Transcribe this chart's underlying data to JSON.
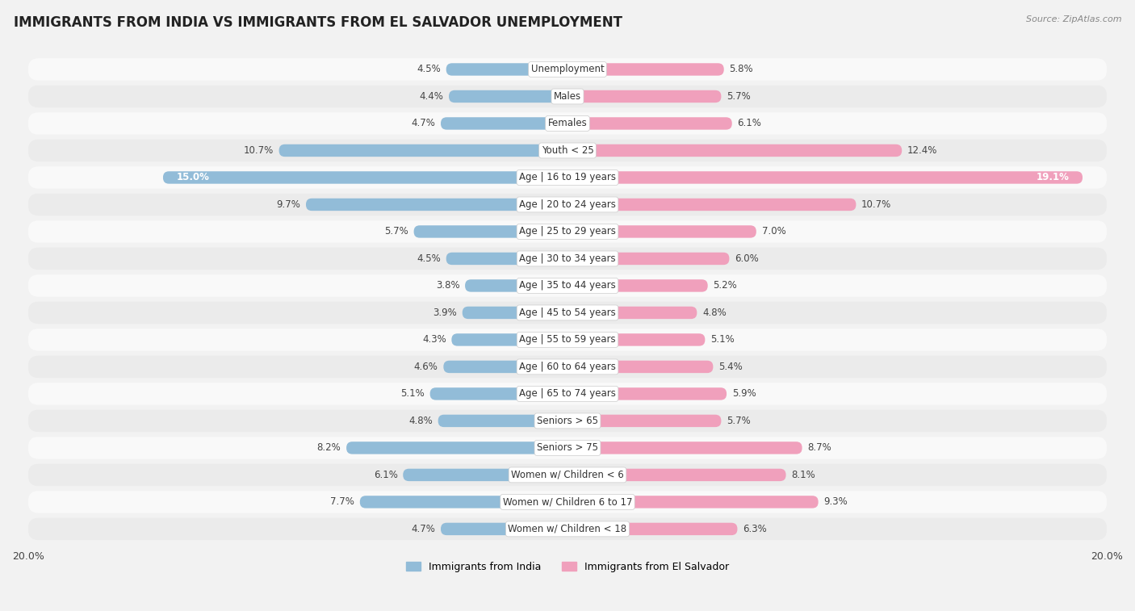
{
  "title": "IMMIGRANTS FROM INDIA VS IMMIGRANTS FROM EL SALVADOR UNEMPLOYMENT",
  "source": "Source: ZipAtlas.com",
  "categories": [
    "Unemployment",
    "Males",
    "Females",
    "Youth < 25",
    "Age | 16 to 19 years",
    "Age | 20 to 24 years",
    "Age | 25 to 29 years",
    "Age | 30 to 34 years",
    "Age | 35 to 44 years",
    "Age | 45 to 54 years",
    "Age | 55 to 59 years",
    "Age | 60 to 64 years",
    "Age | 65 to 74 years",
    "Seniors > 65",
    "Seniors > 75",
    "Women w/ Children < 6",
    "Women w/ Children 6 to 17",
    "Women w/ Children < 18"
  ],
  "india_values": [
    4.5,
    4.4,
    4.7,
    10.7,
    15.0,
    9.7,
    5.7,
    4.5,
    3.8,
    3.9,
    4.3,
    4.6,
    5.1,
    4.8,
    8.2,
    6.1,
    7.7,
    4.7
  ],
  "salvador_values": [
    5.8,
    5.7,
    6.1,
    12.4,
    19.1,
    10.7,
    7.0,
    6.0,
    5.2,
    4.8,
    5.1,
    5.4,
    5.9,
    5.7,
    8.7,
    8.1,
    9.3,
    6.3
  ],
  "india_color": "#92bcd8",
  "india_color_dark": "#6a9fc0",
  "salvador_color": "#f0a0bc",
  "salvador_color_dark": "#e0608c",
  "india_label": "Immigrants from India",
  "salvador_label": "Immigrants from El Salvador",
  "axis_max": 20.0,
  "bg_color": "#f2f2f2",
  "row_color_light": "#f9f9f9",
  "row_color_dark": "#ebebeb",
  "title_fontsize": 12,
  "label_fontsize": 8.5,
  "value_fontsize": 8.5
}
